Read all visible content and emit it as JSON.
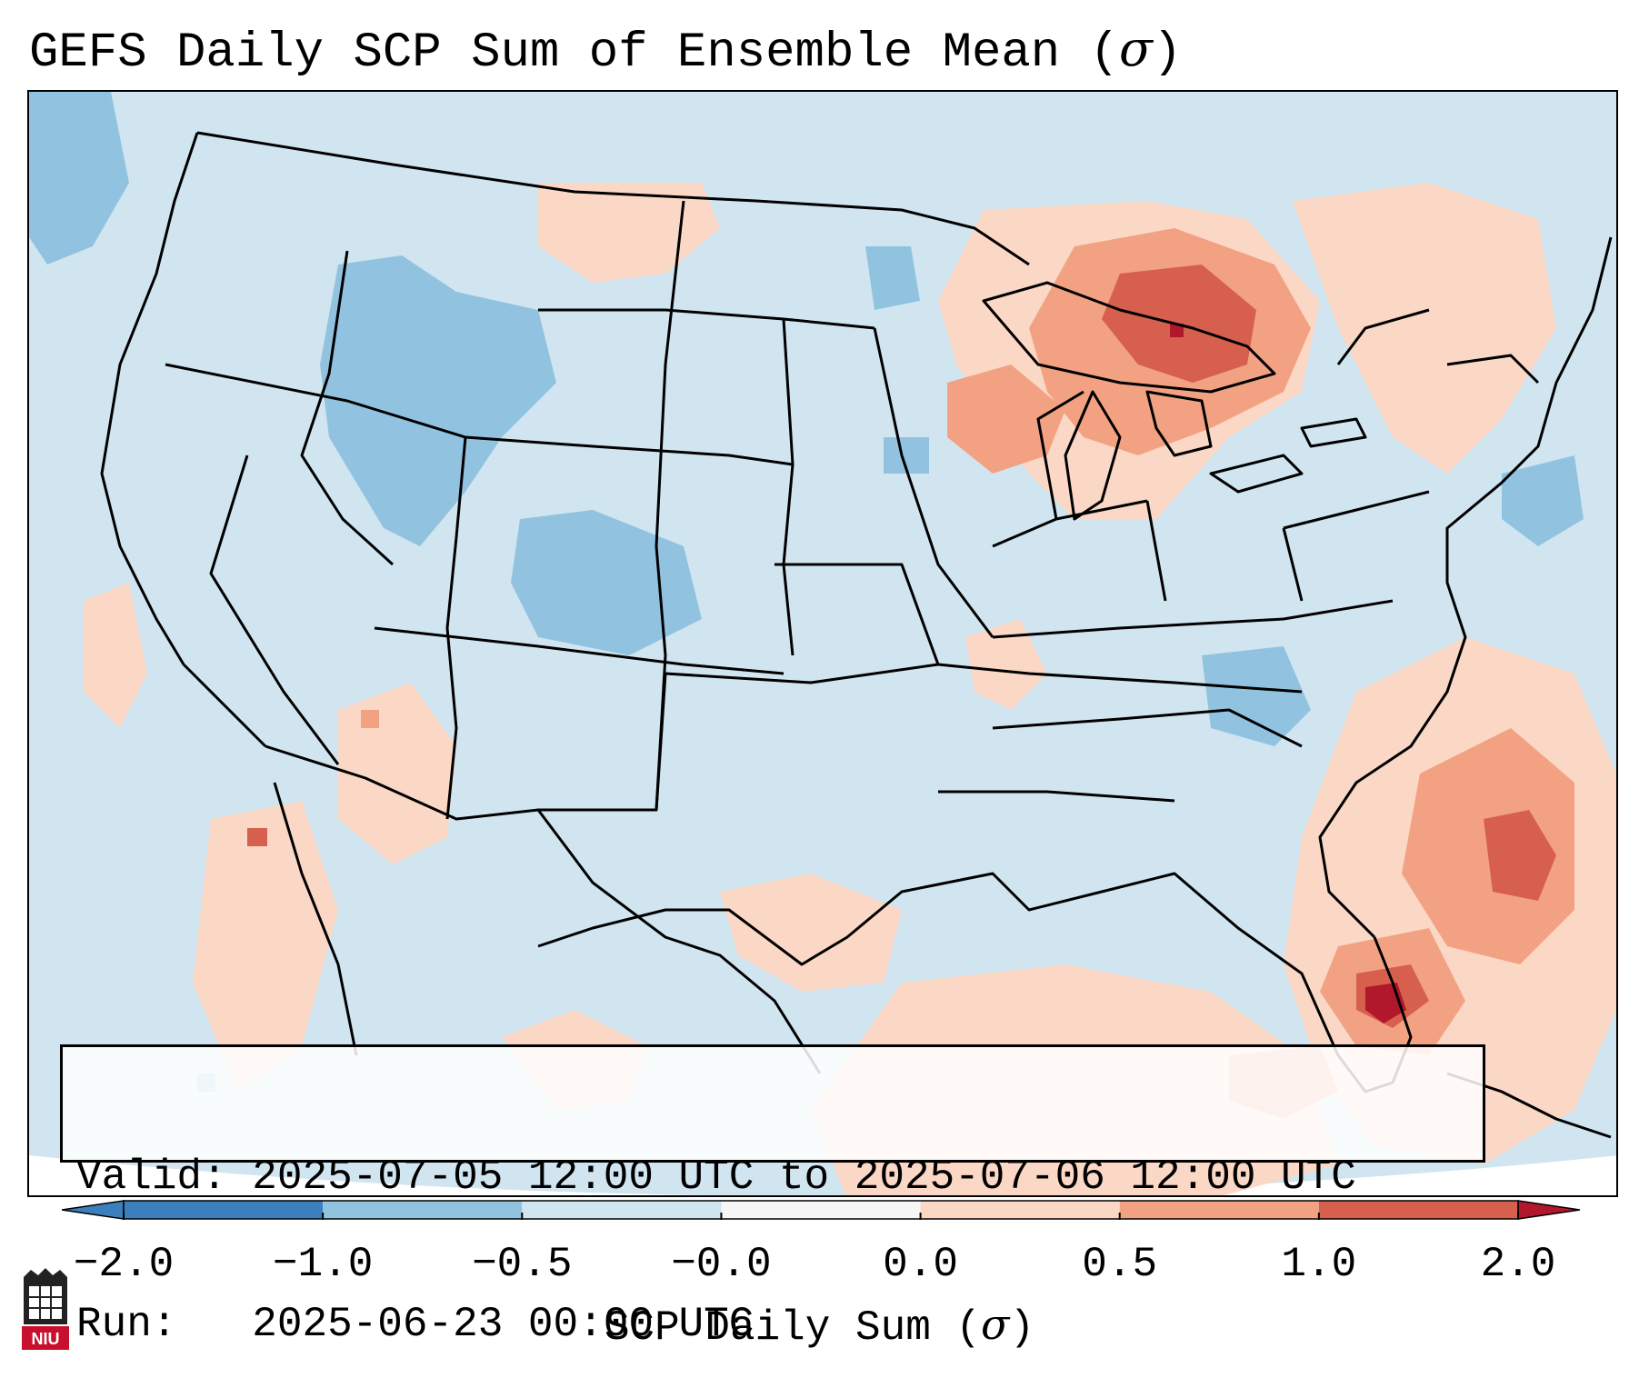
{
  "title": "GEFS Daily SCP Sum of Ensemble Mean (",
  "title_symbol": "σ",
  "title_close": ")",
  "info": {
    "valid_label": "Valid:",
    "valid_value": "2025-07-05 12:00 UTC to 2025-07-06 12:00 UTC",
    "run_label": "Run:",
    "run_value": "2025-06-23 00:00 UTC"
  },
  "colorbar": {
    "ticks": [
      "−2.0",
      "−1.0",
      "−0.5",
      "−0.0",
      "0.0",
      "0.5",
      "1.0",
      "2.0"
    ],
    "colors": [
      "#3c7fbd",
      "#91c3e0",
      "#d1e5f0",
      "#f7f7f7",
      "#fbd8c5",
      "#f2a283",
      "#d6604d",
      "#b2182b"
    ],
    "label": "SCP Daily Sum (",
    "label_symbol": "σ",
    "label_close": ")"
  },
  "logo": {
    "text": "NIU",
    "color": "#c8102e"
  },
  "map": {
    "background_color": "#d1e5f0",
    "regions": [
      {
        "name": "great-lakes-positive",
        "level": "high",
        "color": "#d6604d"
      },
      {
        "name": "florida-atlantic-positive",
        "level": "high",
        "color": "#b2182b"
      },
      {
        "name": "northwest-negative",
        "level": "low",
        "color": "#91c3e0"
      }
    ]
  }
}
